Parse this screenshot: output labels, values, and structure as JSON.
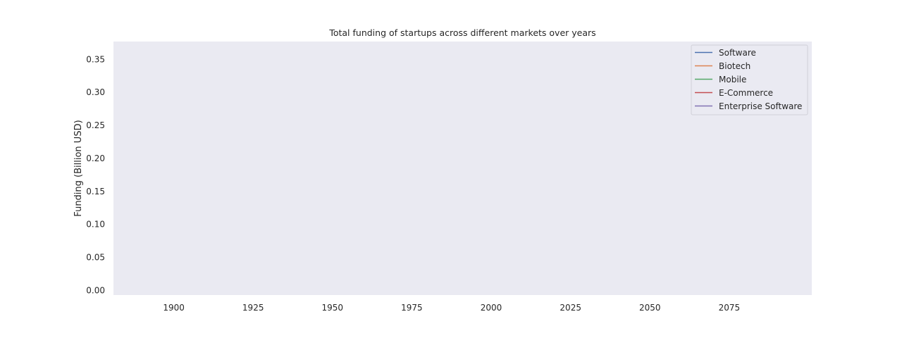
{
  "chart_data": {
    "type": "line",
    "title": "Total funding of startups across different markets over years",
    "xlabel": "",
    "ylabel": "Funding (Billion USD)",
    "xlim": [
      1881,
      2101
    ],
    "ylim": [
      -0.007,
      0.377
    ],
    "x_ticks": [
      1900,
      1925,
      1950,
      1975,
      2000,
      2025,
      2050,
      2075
    ],
    "y_ticks": [
      0.0,
      0.05,
      0.1,
      0.15,
      0.2,
      0.25,
      0.3,
      0.35
    ],
    "y_tick_labels": [
      "0.00",
      "0.05",
      "0.10",
      "0.15",
      "0.20",
      "0.25",
      "0.30",
      "0.35"
    ],
    "grid": false,
    "legend_position": "top-right",
    "series": [
      {
        "name": "Software",
        "color": "#4c72b0",
        "x": [],
        "values": []
      },
      {
        "name": "Biotech",
        "color": "#dd8452",
        "x": [],
        "values": []
      },
      {
        "name": "Mobile",
        "color": "#55a868",
        "x": [],
        "values": []
      },
      {
        "name": "E-Commerce",
        "color": "#c44e52",
        "x": [],
        "values": []
      },
      {
        "name": "Enterprise Software",
        "color": "#8172b3",
        "x": [],
        "values": []
      }
    ]
  }
}
